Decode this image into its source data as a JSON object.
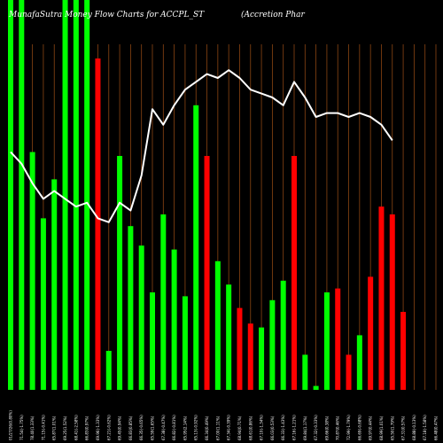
{
  "header": {
    "title_left": "MunafaSutra  Money Flow  Charts for ACCPL_ST",
    "title_right": "(Accretion  Phar"
  },
  "colors": {
    "background": "#000000",
    "up": "#00ff00",
    "down": "#ff0000",
    "grid": "#8B4513",
    "line": "#ffffff"
  },
  "chart_data": {
    "type": "bar",
    "ylim": [
      0,
      100
    ],
    "categories": [
      "01/27/26(0.80%)",
      "71.54(-1.75%)",
      "78.40(1.33%)",
      "71.15(-0.41%)",
      "65.87(1.01%)",
      "69.25(1.52%)",
      "68.41(-2.58%)",
      "66.83(0.97%)",
      "69.96(-1.33%)",
      "67.21(-0.62%)",
      "69.45(0.94%)",
      "66.83(0.85%)",
      "66.35(-0.65%)",
      "65.59(1.65%)",
      "67.38(-0.47%)",
      "66.82(-0.81%)",
      "65.95(2.14%)",
      "65.13(-0.92%)",
      "66.34(0.49%)",
      "67.00(1.11%)",
      "67.34(-0.39%)",
      "68.94(0.71%)",
      "68.61(0.86%)",
      "67.10(-1.34%)",
      "66.03(0.53%)",
      "66.33(-1.43%)",
      "67.16(-1.21%)",
      "69.84(1.17%)",
      "67.32(-0.33%)",
      "69.66(0.38%)",
      "70.87(0.46%)",
      "72.99(-1.79%)",
      "66.69(-0.68%)",
      "69.97(0.44%)",
      "68.99(1.01%)",
      "65.50(1.79%)",
      "67.31(0.57%)",
      "68.88(-0.13%)",
      "67.18(-1.58%)",
      "66.48(0.47%)"
    ],
    "bar_colors": [
      "up",
      "up",
      "up",
      "up",
      "up",
      "up",
      "up",
      "up",
      "down",
      "up",
      "up",
      "up",
      "up",
      "up",
      "up",
      "up",
      "up",
      "up",
      "down",
      "up",
      "up",
      "down",
      "down",
      "up",
      "up",
      "up",
      "down",
      "up",
      "up",
      "up",
      "down",
      "down",
      "up",
      "down",
      "down",
      "down",
      "down",
      "down",
      "up",
      "down"
    ],
    "values": [
      100,
      100,
      61,
      44,
      54,
      100,
      100,
      100,
      85,
      10,
      60,
      42,
      37,
      25,
      45,
      36,
      24,
      73,
      60,
      33,
      27,
      21,
      17,
      16,
      23,
      28,
      60,
      9,
      1,
      25,
      26,
      9,
      14,
      29,
      47,
      45,
      20,
      0,
      0,
      0
    ],
    "line_values": [
      61,
      58,
      53,
      49,
      51,
      49,
      47,
      48,
      44,
      43,
      48,
      46,
      55,
      72,
      68,
      73,
      77,
      79,
      81,
      80,
      82,
      80,
      77,
      76,
      75,
      73,
      79,
      75,
      70,
      71,
      71,
      70,
      71,
      70,
      68,
      64,
      0,
      0,
      0,
      0
    ]
  }
}
